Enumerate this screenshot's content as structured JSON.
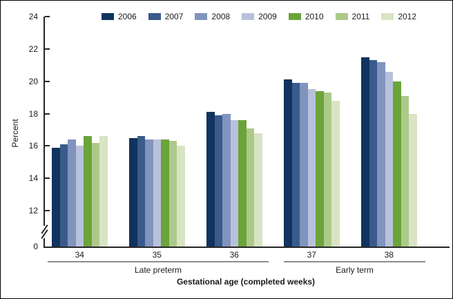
{
  "chart_data": {
    "type": "bar",
    "title": "",
    "ylabel": "Percent",
    "xlabel": "Gestational age (completed weeks)",
    "categories": [
      "34",
      "35",
      "36",
      "37",
      "38"
    ],
    "series": [
      {
        "name": "2006",
        "color": "#11335f",
        "values": [
          15.9,
          16.5,
          18.1,
          20.1,
          21.5
        ]
      },
      {
        "name": "2007",
        "color": "#3a5a8b",
        "values": [
          16.1,
          16.6,
          17.9,
          19.9,
          21.3
        ]
      },
      {
        "name": "2008",
        "color": "#8094be",
        "values": [
          16.4,
          16.4,
          18.0,
          19.9,
          21.2
        ]
      },
      {
        "name": "2009",
        "color": "#b8c1dc",
        "values": [
          16.0,
          16.4,
          17.6,
          19.5,
          20.6
        ]
      },
      {
        "name": "2010",
        "color": "#6ba43a",
        "values": [
          16.6,
          16.4,
          17.6,
          19.4,
          20.0
        ]
      },
      {
        "name": "2011",
        "color": "#adc98a",
        "values": [
          16.2,
          16.3,
          17.1,
          19.3,
          19.1
        ]
      },
      {
        "name": "2012",
        "color": "#d8e4c3",
        "values": [
          16.6,
          16.0,
          16.8,
          18.8,
          18.0
        ]
      }
    ],
    "y_axis": {
      "tick_labels": [
        24,
        22,
        20,
        18,
        16,
        14,
        12
      ],
      "baseline_label": "0",
      "axis_break": true,
      "displayed_range": [
        12,
        24
      ]
    },
    "legend_position": "top",
    "grid": false,
    "group_brackets": [
      {
        "label": "Late preterm",
        "span": [
          "34",
          "36"
        ]
      },
      {
        "label": "Early term",
        "span": [
          "37",
          "38"
        ]
      }
    ]
  }
}
